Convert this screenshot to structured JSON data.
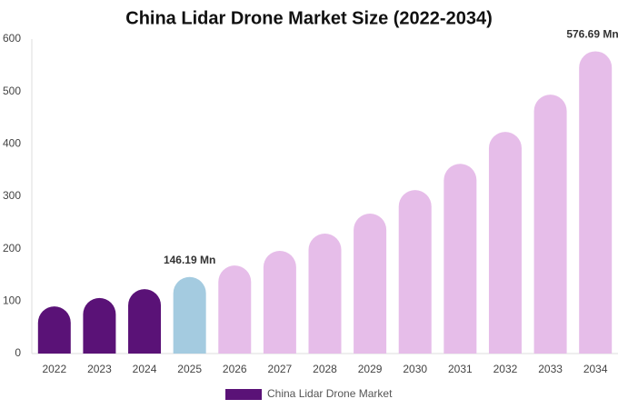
{
  "chart_data": {
    "type": "bar",
    "title": "China Lidar Drone Market Size (2022-2034)",
    "categories": [
      "2022",
      "2023",
      "2024",
      "2025",
      "2026",
      "2027",
      "2028",
      "2029",
      "2030",
      "2031",
      "2032",
      "2033",
      "2034"
    ],
    "series": [
      {
        "name": "China Lidar Drone Market",
        "color": "#5a1277",
        "values": [
          90,
          106,
          123,
          146.19,
          168,
          196,
          229,
          267,
          312,
          362,
          423,
          494,
          576.69
        ],
        "value_labels": [
          null,
          null,
          null,
          "146.19 Mn",
          null,
          null,
          null,
          null,
          null,
          null,
          null,
          null,
          "576.69 Mn"
        ],
        "colors": [
          "#5a1277",
          "#5a1277",
          "#5a1277",
          "#a4cbe0",
          "#e6bde9",
          "#e6bde9",
          "#e6bde9",
          "#e6bde9",
          "#e6bde9",
          "#e6bde9",
          "#e6bde9",
          "#e6bde9",
          "#e6bde9"
        ]
      }
    ],
    "ylim": [
      0,
      600
    ],
    "yticks": [
      0,
      100,
      200,
      300,
      400,
      500,
      600
    ],
    "grid": false
  }
}
